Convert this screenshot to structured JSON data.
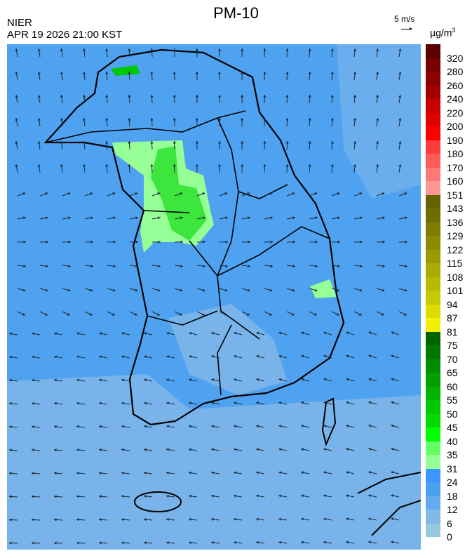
{
  "title": "PM-10",
  "agency": "NIER",
  "datetime": "APR 19 2026 21:00 KST",
  "wind_scale": {
    "label": "5 m/s"
  },
  "colorbar": {
    "unit": "µg/m",
    "unit_exp": "3",
    "labels": [
      "320",
      "280",
      "260",
      "240",
      "220",
      "200",
      "190",
      "180",
      "170",
      "160",
      "151",
      "143",
      "136",
      "129",
      "122",
      "115",
      "108",
      "101",
      "94",
      "87",
      "81",
      "75",
      "70",
      "65",
      "60",
      "55",
      "50",
      "45",
      "40",
      "35",
      "31",
      "24",
      "18",
      "12",
      "6",
      "0"
    ],
    "colors": [
      "#5a0000",
      "#780000",
      "#8c0000",
      "#a50000",
      "#c80000",
      "#e10000",
      "#ff0000",
      "#ff3c3c",
      "#ff5a5a",
      "#ff7878",
      "#ff9696",
      "#646400",
      "#6e6e00",
      "#7d7d00",
      "#8c8c00",
      "#9b9b00",
      "#aaaa00",
      "#b9b900",
      "#c8c800",
      "#dcdc00",
      "#f5f000",
      "#006400",
      "#007800",
      "#008c00",
      "#00a000",
      "#00b400",
      "#00c800",
      "#00dc00",
      "#00ff00",
      "#64ff64",
      "#96ff96",
      "#3c96ff",
      "#4ba0f0",
      "#64aaf0",
      "#82b9e6",
      "#96c8e1"
    ]
  }
}
